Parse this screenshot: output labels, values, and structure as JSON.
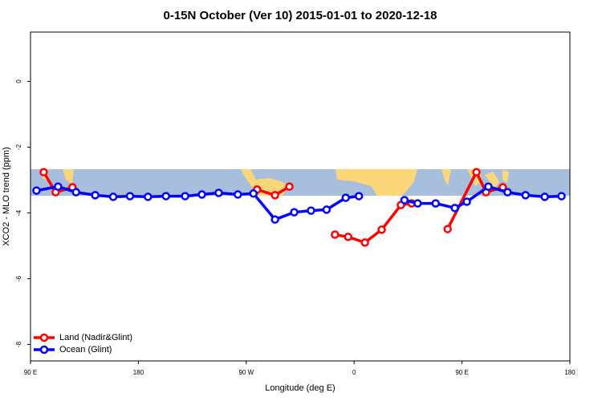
{
  "chart_data": {
    "type": "line",
    "title": "0-15N October (Ver 10)   2015-01-01 to 2020-12-18",
    "x_label": "Longitude (deg E)",
    "y_label": "XCO2 - MLO trend (ppm)",
    "xlim": [
      90,
      540
    ],
    "xticks": [
      {
        "value": 90,
        "label": "90 E"
      },
      180,
      {
        "value": 270,
        "label": "90 W"
      },
      {
        "value": 360,
        "label": "0"
      },
      {
        "value": 450,
        "label": "90 E"
      },
      {
        "value": 540,
        "label": "180"
      }
    ],
    "ylim": [
      -8.5,
      1.5
    ],
    "yticks": [
      -8,
      -6,
      -4,
      -2,
      0
    ],
    "legend": "bottom-left",
    "series": [
      {
        "name": "Land (Nadir&Glint)",
        "color": "#ff0000",
        "x": [
          101,
          111,
          125,
          200,
          279,
          294,
          306,
          325,
          344,
          355,
          369,
          383,
          399,
          408,
          420,
          438,
          462,
          470,
          484
        ],
        "values": [
          -2.76,
          -3.37,
          -3.22,
          null,
          -3.29,
          -3.46,
          -3.2,
          null,
          -4.66,
          -4.73,
          -4.9,
          -4.51,
          -3.76,
          -3.71,
          null,
          -4.49,
          -2.76,
          -3.37,
          -3.22
        ]
      },
      {
        "name": "Ocean (Glint)",
        "color": "#0000ff",
        "x": [
          95,
          113,
          128,
          144,
          159,
          173,
          188,
          203,
          219,
          233,
          247,
          263,
          276,
          294,
          310,
          324,
          337,
          353,
          364,
          380,
          402,
          413,
          428,
          444,
          454,
          472,
          488,
          503,
          519,
          533
        ],
        "values": [
          -3.32,
          -3.2,
          -3.37,
          -3.46,
          -3.51,
          -3.49,
          -3.51,
          -3.49,
          -3.49,
          -3.44,
          -3.39,
          -3.44,
          -3.41,
          -4.2,
          -3.98,
          -3.93,
          -3.9,
          -3.54,
          -3.49,
          null,
          -3.61,
          -3.71,
          -3.71,
          -3.85,
          -3.66,
          -3.2,
          -3.37,
          -3.46,
          -3.51,
          -3.49
        ]
      }
    ]
  }
}
